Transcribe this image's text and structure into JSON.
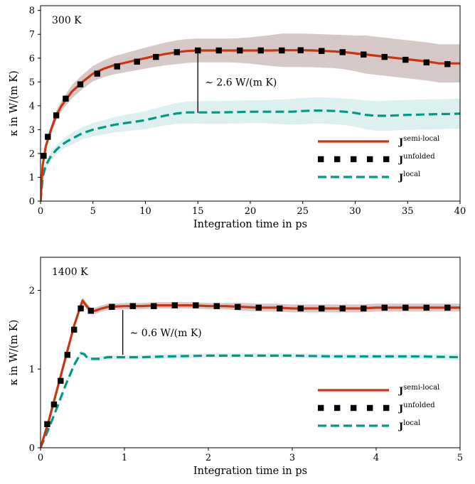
{
  "colors": {
    "semi_local": "#cc3311",
    "unfolded": "#000000",
    "local": "#009988",
    "semi_band": "#b59a98",
    "local_band": "#b9e3df"
  },
  "chart_data": [
    {
      "type": "line",
      "panel_label": "300 K",
      "xlabel": "Integration time in ps",
      "ylabel": "κ in W/(m K)",
      "xlim": [
        0,
        40
      ],
      "ylim": [
        0,
        8.2
      ],
      "xticks": [
        0,
        5,
        10,
        15,
        20,
        25,
        30,
        35,
        40
      ],
      "yticks": [
        0,
        1,
        2,
        3,
        4,
        5,
        6,
        7,
        8
      ],
      "annotation": {
        "text": "∼ 2.6 W/(m K)",
        "x": 15,
        "y_from": 3.7,
        "y_to": 6.3
      },
      "legend": {
        "position": "lower-right",
        "entries": [
          {
            "base": "J",
            "sup": "semi-local",
            "series": "semi"
          },
          {
            "base": "J",
            "sup": "unfolded",
            "series": "unfolded"
          },
          {
            "base": "J",
            "sup": "local",
            "series": "local"
          }
        ]
      },
      "series": [
        {
          "key": "semi",
          "x": [
            0,
            0.2,
            0.5,
            1,
            1.5,
            2,
            2.5,
            3,
            4,
            5,
            6,
            7,
            8,
            9,
            10,
            11,
            12,
            13,
            14,
            15,
            16,
            17,
            18,
            19,
            20,
            21,
            22,
            23,
            24,
            25,
            26,
            27,
            28,
            29,
            30,
            31,
            32,
            33,
            34,
            35,
            36,
            37,
            38,
            39,
            40
          ],
          "values": [
            0,
            1.5,
            2.3,
            3.0,
            3.6,
            4.0,
            4.3,
            4.6,
            5.0,
            5.35,
            5.55,
            5.7,
            5.8,
            5.9,
            6.0,
            6.1,
            6.18,
            6.25,
            6.3,
            6.32,
            6.32,
            6.32,
            6.32,
            6.32,
            6.32,
            6.32,
            6.32,
            6.33,
            6.33,
            6.33,
            6.32,
            6.3,
            6.28,
            6.25,
            6.2,
            6.15,
            6.1,
            6.05,
            6.0,
            5.95,
            5.9,
            5.85,
            5.78,
            5.78,
            5.78
          ],
          "band_halfwidth": [
            0,
            0.1,
            0.15,
            0.18,
            0.2,
            0.22,
            0.25,
            0.28,
            0.3,
            0.32,
            0.35,
            0.38,
            0.4,
            0.42,
            0.44,
            0.46,
            0.48,
            0.5,
            0.5,
            0.5,
            0.5,
            0.5,
            0.5,
            0.52,
            0.55,
            0.6,
            0.65,
            0.7,
            0.7,
            0.7,
            0.7,
            0.7,
            0.7,
            0.72,
            0.75,
            0.8,
            0.8,
            0.8,
            0.8,
            0.8,
            0.8,
            0.8,
            0.8,
            0.8,
            0.8
          ]
        },
        {
          "key": "unfolded",
          "x": [
            0.3,
            0.7,
            1.5,
            2.4,
            3.8,
            5.4,
            7.3,
            9.2,
            11.0,
            13.0,
            15.0,
            17.0,
            19.0,
            21.0,
            23.0,
            24.8,
            26.8,
            28.8,
            30.8,
            32.8,
            34.8,
            36.8,
            38.8
          ],
          "values": [
            1.9,
            2.7,
            3.6,
            4.3,
            4.9,
            5.35,
            5.65,
            5.85,
            6.05,
            6.25,
            6.32,
            6.32,
            6.32,
            6.32,
            6.32,
            6.33,
            6.3,
            6.25,
            6.15,
            6.05,
            5.93,
            5.82,
            5.75
          ]
        },
        {
          "key": "local",
          "x": [
            0,
            0.2,
            0.5,
            1,
            1.5,
            2,
            2.5,
            3,
            4,
            5,
            6,
            7,
            8,
            9,
            10,
            11,
            12,
            13,
            14,
            15,
            16,
            17,
            18,
            19,
            20,
            21,
            22,
            23,
            24,
            25,
            26,
            27,
            28,
            29,
            30,
            31,
            32,
            33,
            34,
            35,
            36,
            37,
            38,
            39,
            40
          ],
          "values": [
            0,
            1.0,
            1.5,
            1.9,
            2.15,
            2.35,
            2.5,
            2.62,
            2.85,
            3.0,
            3.1,
            3.2,
            3.27,
            3.33,
            3.4,
            3.5,
            3.6,
            3.68,
            3.72,
            3.72,
            3.72,
            3.72,
            3.73,
            3.74,
            3.75,
            3.75,
            3.75,
            3.75,
            3.75,
            3.78,
            3.8,
            3.8,
            3.78,
            3.75,
            3.7,
            3.62,
            3.58,
            3.58,
            3.6,
            3.62,
            3.63,
            3.64,
            3.65,
            3.66,
            3.67
          ],
          "band_halfwidth": [
            0,
            0.1,
            0.15,
            0.18,
            0.2,
            0.2,
            0.22,
            0.24,
            0.26,
            0.28,
            0.3,
            0.32,
            0.34,
            0.36,
            0.38,
            0.4,
            0.42,
            0.44,
            0.46,
            0.47,
            0.48,
            0.48,
            0.48,
            0.48,
            0.48,
            0.48,
            0.5,
            0.52,
            0.54,
            0.55,
            0.55,
            0.55,
            0.55,
            0.56,
            0.58,
            0.6,
            0.62,
            0.63,
            0.63,
            0.63,
            0.63,
            0.63,
            0.63,
            0.63,
            0.63
          ]
        }
      ]
    },
    {
      "type": "line",
      "panel_label": "1400 K",
      "xlabel": "Integration time in ps",
      "ylabel": "κ in W/(m K)",
      "xlim": [
        0,
        5
      ],
      "ylim": [
        0,
        2.42
      ],
      "xticks": [
        0,
        1,
        2,
        3,
        4,
        5
      ],
      "yticks": [
        0,
        1,
        2
      ],
      "annotation": {
        "text": "∼ 0.6 W/(m K)",
        "x": 0.98,
        "y_from": 1.18,
        "y_to": 1.75
      },
      "legend": {
        "position": "lower-right",
        "entries": [
          {
            "base": "J",
            "sup": "semi-local",
            "series": "semi"
          },
          {
            "base": "J",
            "sup": "unfolded",
            "series": "unfolded"
          },
          {
            "base": "J",
            "sup": "local",
            "series": "local"
          }
        ]
      },
      "series": [
        {
          "key": "semi",
          "x": [
            0,
            0.1,
            0.2,
            0.3,
            0.4,
            0.5,
            0.55,
            0.6,
            0.65,
            0.7,
            0.8,
            1.0,
            1.2,
            1.4,
            1.6,
            1.8,
            2.0,
            2.2,
            2.4,
            2.6,
            2.8,
            3.0,
            3.2,
            3.4,
            3.6,
            3.8,
            4.0,
            4.2,
            4.4,
            4.6,
            4.8,
            5.0
          ],
          "values": [
            0,
            0.35,
            0.75,
            1.15,
            1.55,
            1.87,
            1.8,
            1.74,
            1.74,
            1.76,
            1.79,
            1.8,
            1.8,
            1.81,
            1.81,
            1.81,
            1.8,
            1.8,
            1.79,
            1.78,
            1.78,
            1.77,
            1.77,
            1.77,
            1.77,
            1.77,
            1.78,
            1.78,
            1.78,
            1.78,
            1.78,
            1.78
          ],
          "band_halfwidth": [
            0,
            0.02,
            0.02,
            0.03,
            0.03,
            0.04,
            0.04,
            0.04,
            0.04,
            0.04,
            0.04,
            0.04,
            0.04,
            0.04,
            0.04,
            0.04,
            0.04,
            0.04,
            0.05,
            0.05,
            0.05,
            0.05,
            0.05,
            0.05,
            0.05,
            0.05,
            0.05,
            0.05,
            0.05,
            0.05,
            0.05,
            0.05
          ]
        },
        {
          "key": "unfolded",
          "x": [
            0.08,
            0.16,
            0.24,
            0.32,
            0.4,
            0.48,
            0.6,
            0.85,
            1.1,
            1.35,
            1.6,
            1.85,
            2.1,
            2.35,
            2.6,
            2.85,
            3.1,
            3.35,
            3.6,
            3.85,
            4.1,
            4.35,
            4.6,
            4.85
          ],
          "values": [
            0.3,
            0.55,
            0.85,
            1.18,
            1.5,
            1.77,
            1.74,
            1.79,
            1.8,
            1.8,
            1.81,
            1.81,
            1.8,
            1.79,
            1.78,
            1.77,
            1.77,
            1.77,
            1.77,
            1.77,
            1.78,
            1.78,
            1.78,
            1.78
          ]
        },
        {
          "key": "local",
          "x": [
            0,
            0.1,
            0.2,
            0.3,
            0.4,
            0.48,
            0.52,
            0.56,
            0.6,
            0.7,
            0.8,
            1.0,
            1.2,
            1.5,
            2.0,
            2.5,
            3.0,
            3.5,
            4.0,
            4.5,
            5.0
          ],
          "values": [
            0,
            0.25,
            0.52,
            0.8,
            1.05,
            1.2,
            1.19,
            1.14,
            1.13,
            1.13,
            1.15,
            1.15,
            1.15,
            1.16,
            1.17,
            1.17,
            1.17,
            1.16,
            1.16,
            1.16,
            1.15
          ],
          "band_halfwidth": [
            0,
            0.01,
            0.02,
            0.02,
            0.03,
            0.03,
            0.03,
            0.03,
            0.03,
            0.03,
            0.03,
            0.03,
            0.03,
            0.03,
            0.03,
            0.03,
            0.03,
            0.03,
            0.03,
            0.03,
            0.04
          ]
        }
      ]
    }
  ]
}
